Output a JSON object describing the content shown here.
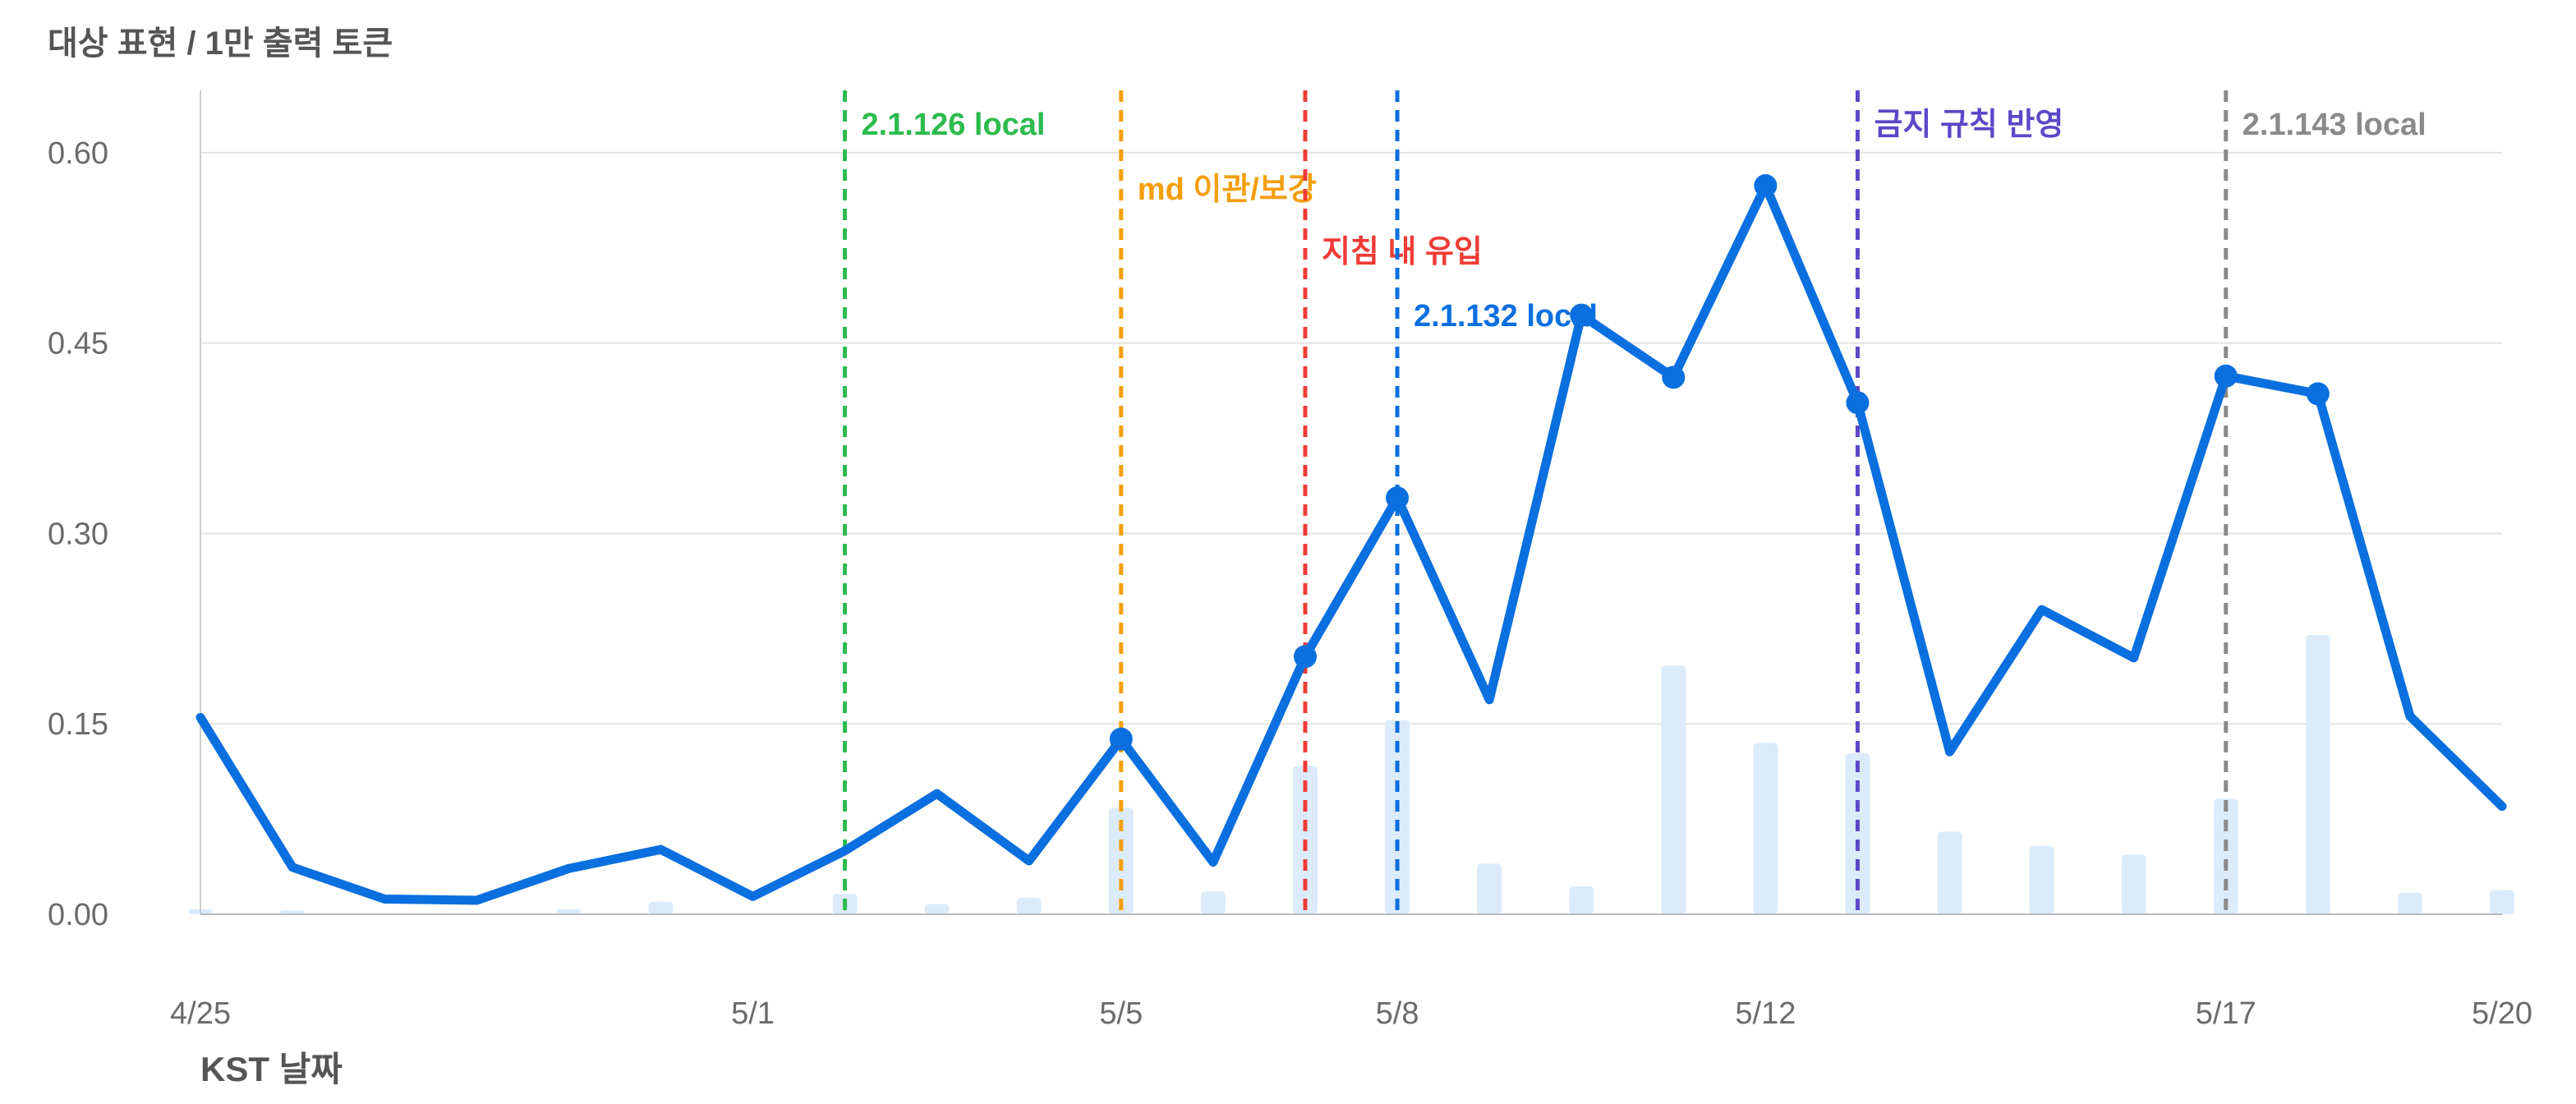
{
  "chart_data": {
    "type": "line",
    "title": "대상 표현 / 1만 출력 토큰",
    "xlabel": "KST 날짜",
    "ylabel": "",
    "ylim": [
      0,
      0.65
    ],
    "yticks": [
      "0.00",
      "0.15",
      "0.30",
      "0.45",
      "0.60"
    ],
    "ytick_values": [
      0,
      0.15,
      0.3,
      0.45,
      0.6
    ],
    "grid": true,
    "x": [
      "4/25",
      "4/26",
      "4/27",
      "4/28",
      "4/29",
      "4/30",
      "5/1",
      "5/2",
      "5/3",
      "5/4",
      "5/5",
      "5/6",
      "5/7",
      "5/8",
      "5/9",
      "5/10",
      "5/11",
      "5/12",
      "5/13",
      "5/14",
      "5/15",
      "5/16",
      "5/17",
      "5/18",
      "5/19",
      "5/20"
    ],
    "xtick_labels": [
      "4/25",
      "5/1",
      "5/5",
      "5/8",
      "5/12",
      "5/17",
      "5/20"
    ],
    "series": [
      {
        "name": "",
        "type": "line",
        "color": "#0a6fdf",
        "values": [
          0.155,
          0.037,
          0.012,
          0.011,
          0.036,
          0.051,
          0.014,
          0.05,
          0.095,
          0.042,
          0.138,
          0.041,
          0.203,
          0.328,
          0.169,
          0.472,
          0.423,
          0.574,
          0.403,
          0.128,
          0.24,
          0.202,
          0.424,
          0.41,
          0.156,
          0.085
        ],
        "markers": [
          "5/5",
          "5/7",
          "5/8",
          "5/10",
          "5/11",
          "5/12",
          "5/13",
          "5/17",
          "5/18"
        ]
      },
      {
        "name": "",
        "type": "bar",
        "color": "#dcebfa",
        "values": [
          0.004,
          0.003,
          0.0,
          0.0,
          0.004,
          0.01,
          0.0,
          0.016,
          0.008,
          0.013,
          0.084,
          0.018,
          0.117,
          0.153,
          0.04,
          0.022,
          0.196,
          0.135,
          0.127,
          0.065,
          0.054,
          0.047,
          0.091,
          0.22,
          0.017,
          0.019
        ]
      }
    ],
    "annotations": [
      {
        "x": "5/2",
        "label": "2.1.126 local",
        "color": "#2dbb4e"
      },
      {
        "x": "5/5",
        "label": "md 이관/보강",
        "color": "#f59e0b"
      },
      {
        "x": "5/7",
        "label": "지침 내 유입",
        "color": "#ef3b36"
      },
      {
        "x": "5/8",
        "label": "2.1.132 local",
        "color": "#0a6fdf"
      },
      {
        "x": "5/13",
        "label": "금지 규칙 반영",
        "color": "#5a48c8"
      },
      {
        "x": "5/17",
        "label": "2.1.143 local",
        "color": "#8a8a8a"
      }
    ]
  }
}
